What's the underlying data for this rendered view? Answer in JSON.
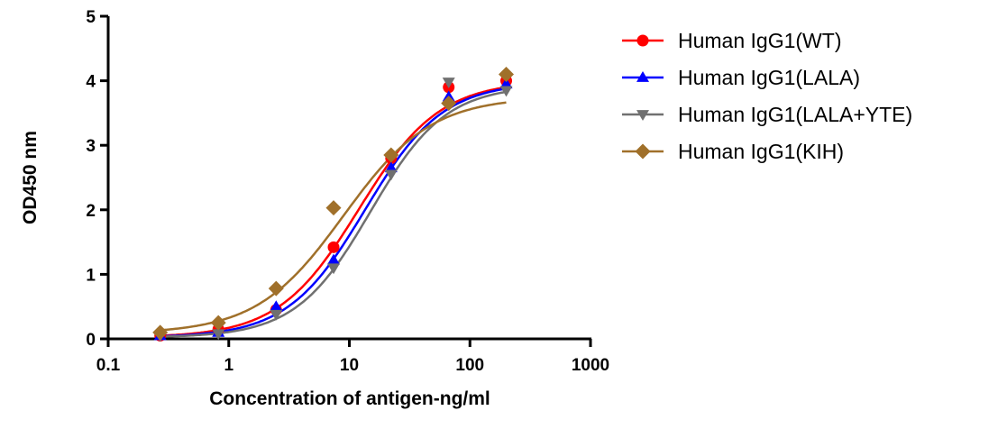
{
  "chart_data": {
    "type": "scatter",
    "title": "",
    "xlabel": "Concentration of antigen-ng/ml",
    "ylabel": "OD450 nm",
    "xscale": "log",
    "xlim": [
      0.1,
      1000
    ],
    "ylim": [
      0,
      5
    ],
    "xticks": [
      "0.1",
      "1",
      "10",
      "100",
      "1000"
    ],
    "yticks": [
      "0",
      "1",
      "2",
      "3",
      "4",
      "5"
    ],
    "grid": false,
    "legend_position": "right",
    "x": [
      0.27,
      0.82,
      2.47,
      7.4,
      22.2,
      66.7,
      200
    ],
    "series": [
      {
        "name": "Human IgG1(WT)",
        "color": "#ff0000",
        "marker": "circle",
        "values": [
          0.05,
          0.15,
          0.45,
          1.42,
          2.8,
          3.9,
          4.0
        ],
        "fit": {
          "bottom": 0.02,
          "top": 4.0,
          "ec50": 12,
          "hill": 1.3
        }
      },
      {
        "name": "Human IgG1(LALA)",
        "color": "#0000ff",
        "marker": "triangle-up",
        "values": [
          0.05,
          0.1,
          0.5,
          1.22,
          2.65,
          3.75,
          3.95
        ],
        "fit": {
          "bottom": 0.02,
          "top": 3.98,
          "ec50": 13.5,
          "hill": 1.35
        }
      },
      {
        "name": "Human IgG1(LALA+YTE)",
        "color": "#707070",
        "marker": "triangle-down",
        "values": [
          0.05,
          0.08,
          0.38,
          1.1,
          2.55,
          3.98,
          3.85
        ],
        "fit": {
          "bottom": 0.02,
          "top": 3.93,
          "ec50": 15,
          "hill": 1.4
        }
      },
      {
        "name": "Human IgG1(KIH)",
        "color": "#a0702a",
        "marker": "diamond",
        "values": [
          0.1,
          0.25,
          0.78,
          2.03,
          2.85,
          3.65,
          4.1
        ],
        "fit": {
          "bottom": 0.08,
          "top": 3.75,
          "ec50": 9,
          "hill": 1.2
        }
      }
    ]
  }
}
